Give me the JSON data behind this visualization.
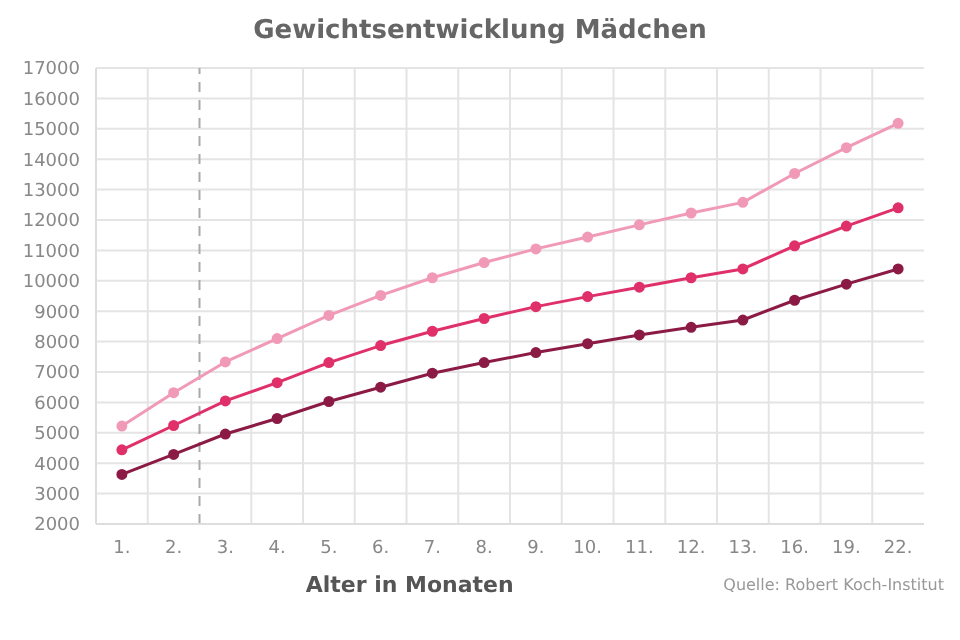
{
  "chart_data": {
    "type": "line",
    "title": "Gewichtsentwicklung Mädchen",
    "xlabel": "Alter in Monaten",
    "annotations": [
      "Quelle: Robert Koch-Institut"
    ],
    "categories": [
      "1.",
      "2.",
      "3.",
      "4.",
      "5.",
      "6.",
      "7.",
      "8.",
      "9.",
      "10.",
      "11.",
      "12.",
      "13.",
      "16.",
      "19.",
      "22."
    ],
    "series": [
      {
        "color": "#f19ab8",
        "values": [
          5220,
          6320,
          7330,
          8100,
          8860,
          9520,
          10100,
          10600,
          11050,
          11440,
          11840,
          12230,
          12580,
          13530,
          14380,
          15180
        ]
      },
      {
        "color": "#e0306a",
        "values": [
          4440,
          5240,
          6050,
          6650,
          7310,
          7870,
          8340,
          8760,
          9150,
          9480,
          9790,
          10100,
          10390,
          11150,
          11800,
          12400
        ]
      },
      {
        "color": "#8b1a45",
        "values": [
          3630,
          4290,
          4960,
          5470,
          6030,
          6500,
          6960,
          7310,
          7640,
          7930,
          8220,
          8470,
          8710,
          9360,
          9890,
          10390
        ]
      }
    ],
    "ylim": [
      2000,
      17000
    ],
    "yticks": [
      2000,
      3000,
      4000,
      5000,
      6000,
      7000,
      8000,
      9000,
      10000,
      11000,
      12000,
      13000,
      14000,
      15000,
      16000,
      17000
    ],
    "grid": true,
    "marker": "circle",
    "line_style": "solid",
    "ref_lines": [
      {
        "axis": "x",
        "value": "3.",
        "color": "#aaaaaa",
        "line_style": "dashed"
      }
    ]
  }
}
